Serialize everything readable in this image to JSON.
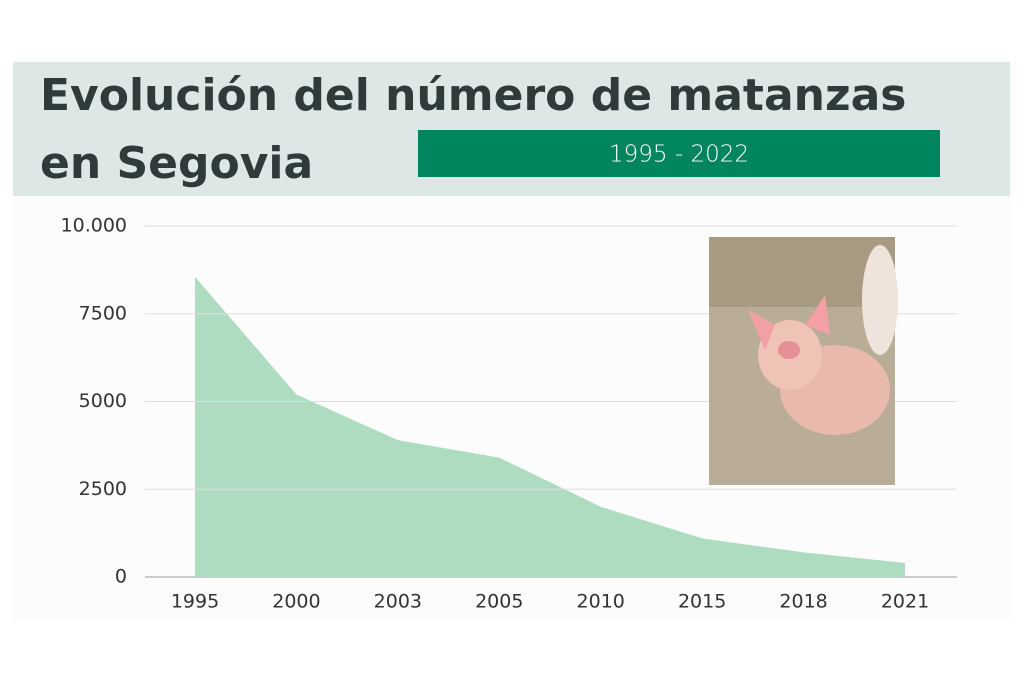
{
  "chart_data": {
    "type": "area",
    "title": [
      "Evolución del número de matanzas",
      "en Segovia"
    ],
    "subtitle": "1995 - 2022",
    "categories": [
      "1995",
      "2000",
      "2003",
      "2005",
      "2010",
      "2015",
      "2018",
      "2021"
    ],
    "values": [
      8550,
      5200,
      3900,
      3400,
      2000,
      1100,
      700,
      400
    ],
    "color": "#aedcc1",
    "ylim": [
      0,
      10000
    ],
    "yticks": [
      0,
      2500,
      5000,
      7500,
      {
        "value": 10000,
        "label": "10.000"
      }
    ],
    "grid": true
  }
}
